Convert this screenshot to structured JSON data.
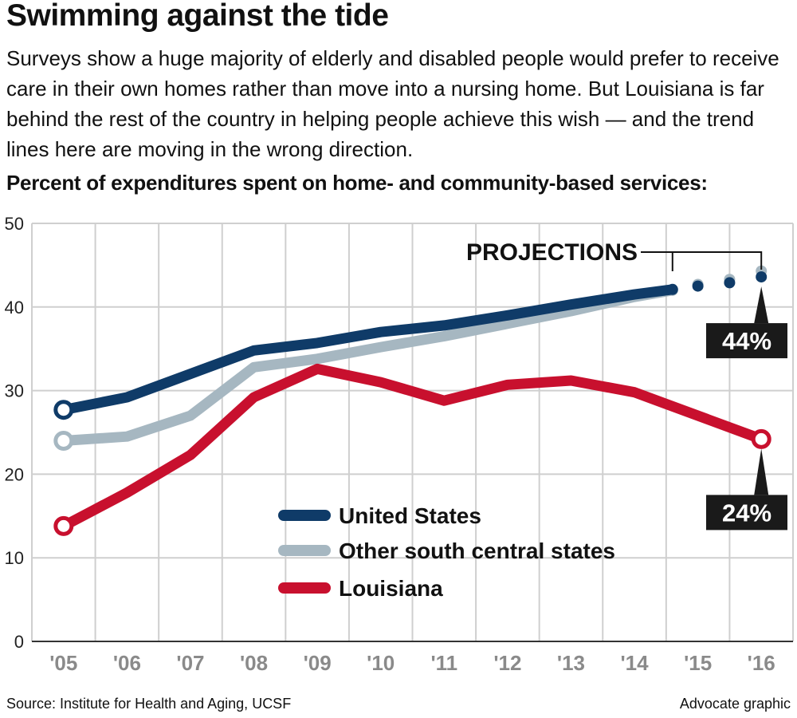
{
  "title": "Swimming against the tide",
  "dek": "Surveys show a huge majority of elderly and disabled people would prefer to receive care in their own homes rather than move into a nursing home. But Louisiana is far behind the rest of the country in helping people achieve this wish — and the trend lines here are moving in the wrong direction.",
  "subhead": "Percent of expenditures spent on home- and community-based services:",
  "source": "Source: Institute for Health and Aging, UCSF",
  "credit": "Advocate graphic",
  "colors": {
    "us": "#0f3b68",
    "south": "#a6b7c1",
    "louisiana": "#c8102e",
    "grid": "#cfcfcf",
    "axis": "#333333",
    "callout_bg": "#1a1a1a"
  },
  "chart_data": {
    "type": "line",
    "title": "Percent of expenditures spent on home- and community-based services:",
    "xlabel": "",
    "ylabel": "",
    "ylim": [
      0,
      50
    ],
    "yticks": [
      0,
      10,
      20,
      30,
      40,
      50
    ],
    "categories": [
      "'05",
      "'06",
      "'07",
      "'08",
      "'09",
      "'10",
      "'11",
      "'12",
      "'13",
      "'14",
      "'15",
      "'16"
    ],
    "projections_label": "PROJECTIONS",
    "projection_start": 2014.6,
    "series": [
      {
        "name": "Other south central states",
        "key": "south",
        "points": [
          [
            2005,
            24.0
          ],
          [
            2006,
            24.5
          ],
          [
            2007,
            27.0
          ],
          [
            2008,
            32.8
          ],
          [
            2009,
            33.8
          ],
          [
            2010,
            35.2
          ],
          [
            2011,
            36.5
          ],
          [
            2012,
            38.0
          ],
          [
            2013,
            39.5
          ],
          [
            2014,
            41.2
          ],
          [
            2014.6,
            42.0
          ]
        ],
        "projected": [
          [
            2014.6,
            42.0
          ],
          [
            2015,
            42.7
          ],
          [
            2015.5,
            43.3
          ],
          [
            2016,
            44.3
          ]
        ]
      },
      {
        "name": "United States",
        "key": "us",
        "points": [
          [
            2005,
            27.7
          ],
          [
            2006,
            29.2
          ],
          [
            2007,
            32.0
          ],
          [
            2008,
            34.8
          ],
          [
            2009,
            35.7
          ],
          [
            2010,
            37.0
          ],
          [
            2011,
            37.8
          ],
          [
            2012,
            39.0
          ],
          [
            2013,
            40.3
          ],
          [
            2014,
            41.5
          ],
          [
            2014.6,
            42.1
          ]
        ],
        "projected": [
          [
            2014.6,
            42.1
          ],
          [
            2015,
            42.5
          ],
          [
            2015.5,
            42.9
          ],
          [
            2016,
            43.6
          ]
        ]
      },
      {
        "name": "Louisiana",
        "key": "louisiana",
        "points": [
          [
            2005,
            13.8
          ],
          [
            2006,
            17.8
          ],
          [
            2007,
            22.3
          ],
          [
            2008,
            29.2
          ],
          [
            2009,
            32.6
          ],
          [
            2010,
            31.0
          ],
          [
            2011,
            28.8
          ],
          [
            2012,
            30.7
          ],
          [
            2013,
            31.2
          ],
          [
            2014,
            29.8
          ],
          [
            2016,
            24.2
          ]
        ],
        "projected": []
      }
    ],
    "legend": [
      {
        "name": "United States",
        "key": "us"
      },
      {
        "name": "Other south central states",
        "key": "south"
      },
      {
        "name": "Louisiana",
        "key": "louisiana"
      }
    ],
    "callouts": [
      {
        "label": "44%",
        "x": 2016,
        "y": 43.6
      },
      {
        "label": "24%",
        "x": 2016,
        "y": 24.2
      }
    ]
  }
}
